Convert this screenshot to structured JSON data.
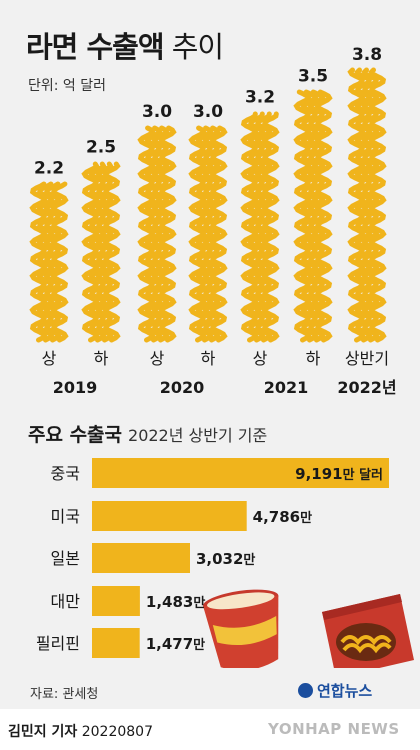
{
  "header": {
    "title_bold": "라면 수출액",
    "title_light": " 추이",
    "unit": "단위: 억 달러"
  },
  "chart_data": [
    {
      "type": "bar",
      "categories": [
        "2019 상",
        "2019 하",
        "2020 상",
        "2020 하",
        "2021 상",
        "2021 하",
        "2022 상반기"
      ],
      "half_labels": [
        "상",
        "하",
        "상",
        "하",
        "상",
        "하",
        "상반기"
      ],
      "year_labels": [
        "2019",
        "2020",
        "2021",
        "2022년"
      ],
      "values": [
        2.2,
        2.5,
        3.0,
        3.0,
        3.2,
        3.5,
        3.8
      ],
      "value_labels": [
        "2.2",
        "2.5",
        "3.0",
        "3.0",
        "3.2",
        "3.5",
        "3.8"
      ],
      "ylabel": "단위: 억 달러",
      "ylim": [
        0,
        3.8
      ],
      "grid": false,
      "bar_color": "#f0b41c"
    },
    {
      "type": "bar",
      "orientation": "horizontal",
      "categories": [
        "중국",
        "미국",
        "일본",
        "대만",
        "필리핀"
      ],
      "values": [
        9191,
        4786,
        3032,
        1483,
        1477
      ],
      "value_labels": [
        "9,191",
        "4,786",
        "3,032",
        "1,483",
        "1,477"
      ],
      "unit_first": "만 달러",
      "unit_rest": "만",
      "xlim": [
        0,
        9191
      ],
      "bar_color": "#f0b41c"
    }
  ],
  "section2": {
    "title": "주요 수출국",
    "subtitle": "2022년 상반기 기준"
  },
  "source": "자료: 관세청",
  "brand": "연합뉴스",
  "footer": {
    "credit_name": "김민지 기자",
    "credit_date": "20220807",
    "watermark": "YONHAP NEWS"
  }
}
